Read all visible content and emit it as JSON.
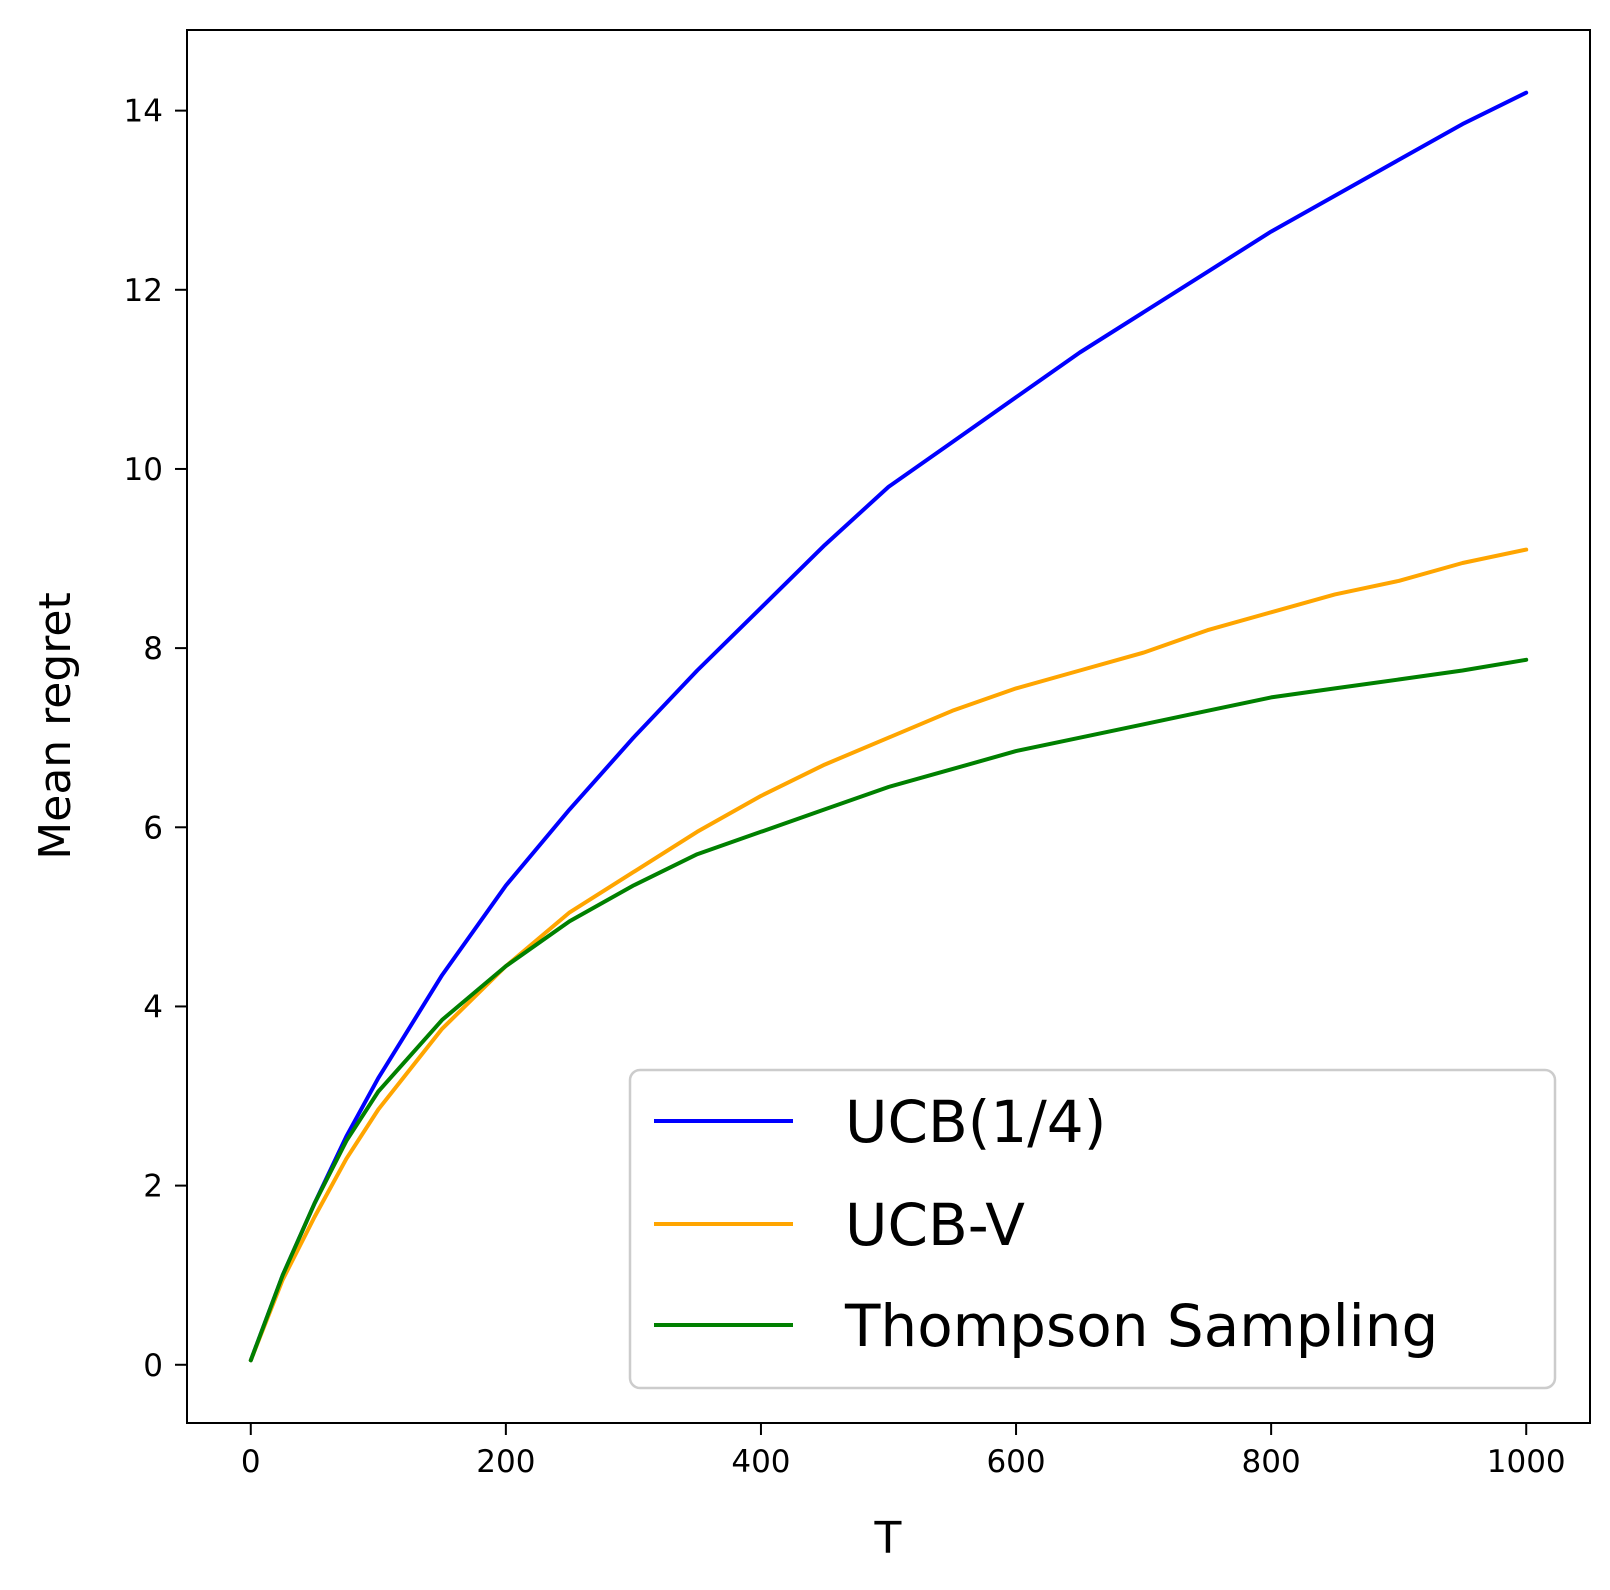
{
  "chart_data": {
    "type": "line",
    "title": "",
    "xlabel": "T",
    "ylabel": "Mean regret",
    "xlim": [
      -50,
      1050
    ],
    "ylim": [
      -0.65,
      14.9
    ],
    "xticks": [
      0,
      200,
      400,
      600,
      800,
      1000
    ],
    "yticks": [
      0,
      2,
      4,
      6,
      8,
      10,
      12,
      14
    ],
    "grid": false,
    "legend_position": "lower-right",
    "x": [
      0,
      25,
      50,
      75,
      100,
      150,
      200,
      250,
      300,
      350,
      400,
      450,
      500,
      550,
      600,
      650,
      700,
      750,
      800,
      850,
      900,
      950,
      1000
    ],
    "series": [
      {
        "name": "UCB(1/4)",
        "color": "#0000ff",
        "values": [
          0.05,
          1.0,
          1.8,
          2.55,
          3.2,
          4.35,
          5.35,
          6.2,
          7.0,
          7.75,
          8.45,
          9.15,
          9.8,
          10.3,
          10.8,
          11.3,
          11.75,
          12.2,
          12.65,
          13.05,
          13.45,
          13.85,
          14.2
        ]
      },
      {
        "name": "UCB-V",
        "color": "#ffa500",
        "values": [
          0.05,
          0.95,
          1.65,
          2.3,
          2.85,
          3.75,
          4.45,
          5.05,
          5.5,
          5.95,
          6.35,
          6.7,
          7.0,
          7.3,
          7.55,
          7.75,
          7.95,
          8.2,
          8.4,
          8.6,
          8.75,
          8.95,
          9.1
        ]
      },
      {
        "name": "Thompson Sampling",
        "color": "#008000",
        "values": [
          0.05,
          1.0,
          1.8,
          2.5,
          3.05,
          3.85,
          4.45,
          4.95,
          5.35,
          5.7,
          5.95,
          6.2,
          6.45,
          6.65,
          6.85,
          7.0,
          7.15,
          7.3,
          7.45,
          7.55,
          7.65,
          7.75,
          7.87
        ]
      }
    ]
  }
}
